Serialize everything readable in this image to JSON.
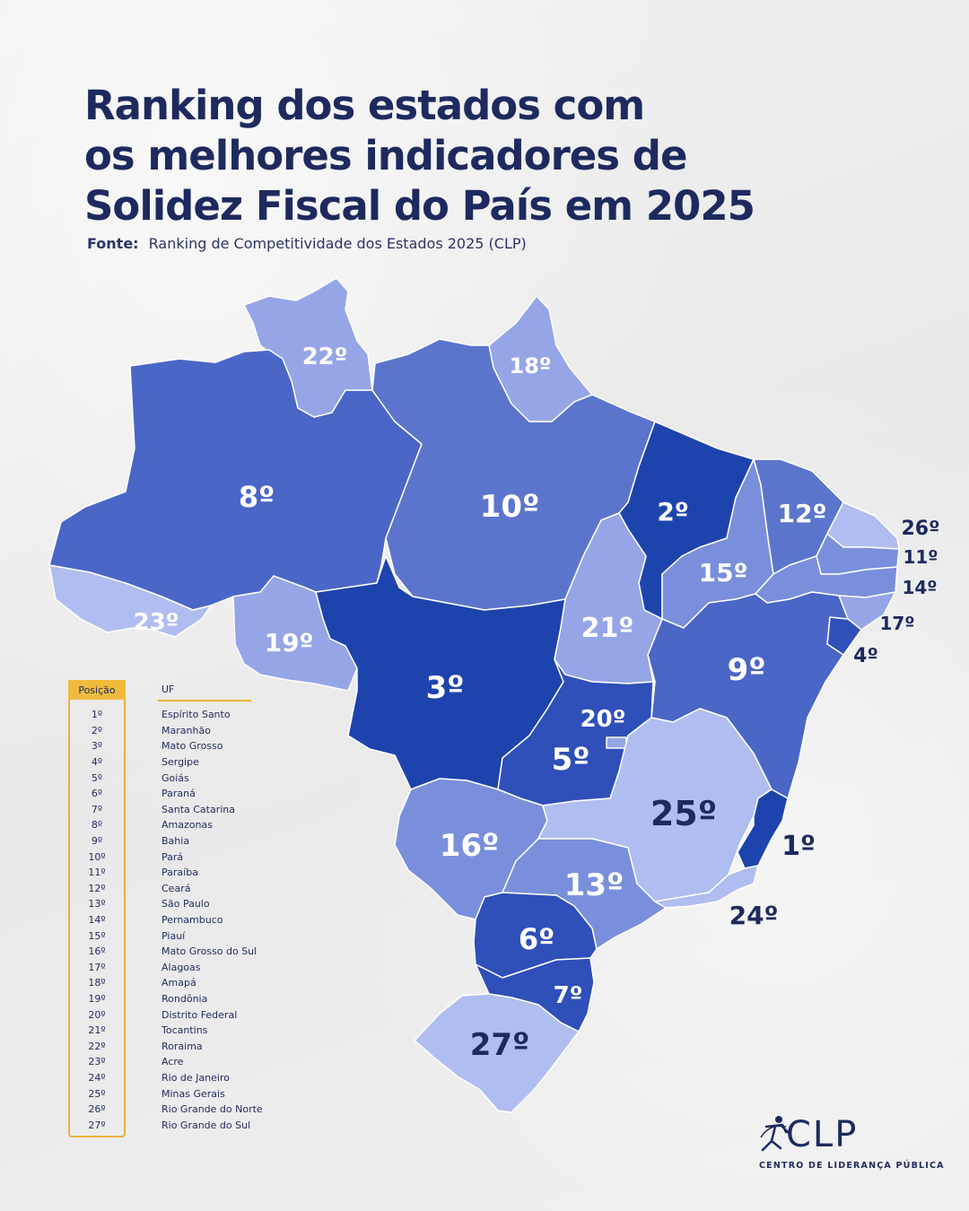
{
  "header": {
    "title_line1": "Ranking dos estados com",
    "title_line2": "os melhores indicadores de",
    "title_line3": "Solidez Fiscal do País em 2025",
    "source_label": "Fonte:",
    "source_text": "Ranking de Competitividade dos Estados 2025 (CLP)"
  },
  "map_labels": {
    "AM": "8º",
    "RR": "22º",
    "AP": "18º",
    "PA": "10º",
    "MA": "2º",
    "CE": "12º",
    "RN": "26º",
    "PB": "11º",
    "PE": "14º",
    "AL": "17º",
    "SE": "4º",
    "PI": "15º",
    "TO": "21º",
    "BA": "9º",
    "AC": "23º",
    "RO": "19º",
    "MT": "3º",
    "DF": "20º",
    "GO": "5º",
    "MS": "16º",
    "MG": "25º",
    "ES": "1º",
    "SP": "13º",
    "RJ": "24º",
    "PR": "6º",
    "SC": "7º",
    "RS": "27º"
  },
  "colors": {
    "top": "#1d44ad",
    "high": "#2f4fb9",
    "mid_high": "#4a66c6",
    "mid": "#5c75cc",
    "mid_low": "#7a8fdb",
    "low": "#95a5e6",
    "lowest": "#b0bdf0",
    "title": "#1e2a5e",
    "legend_accent": "#f0bb3d"
  },
  "legend": {
    "header_position": "Posição",
    "header_uf": "UF",
    "rows": [
      {
        "pos": "1º",
        "uf": "Espírito Santo"
      },
      {
        "pos": "2º",
        "uf": "Maranhão"
      },
      {
        "pos": "3º",
        "uf": "Mato Grosso"
      },
      {
        "pos": "4º",
        "uf": "Sergipe"
      },
      {
        "pos": "5º",
        "uf": "Goiás"
      },
      {
        "pos": "6º",
        "uf": "Paraná"
      },
      {
        "pos": "7º",
        "uf": "Santa Catarina"
      },
      {
        "pos": "8º",
        "uf": "Amazonas"
      },
      {
        "pos": "9º",
        "uf": "Bahia"
      },
      {
        "pos": "10º",
        "uf": "Pará"
      },
      {
        "pos": "11º",
        "uf": "Paraíba"
      },
      {
        "pos": "12º",
        "uf": "Ceará"
      },
      {
        "pos": "13º",
        "uf": "São Paulo"
      },
      {
        "pos": "14º",
        "uf": "Pernambuco"
      },
      {
        "pos": "15º",
        "uf": "Piauí"
      },
      {
        "pos": "16º",
        "uf": "Mato Grosso do Sul"
      },
      {
        "pos": "17º",
        "uf": "Alagoas"
      },
      {
        "pos": "18º",
        "uf": "Amapá"
      },
      {
        "pos": "19º",
        "uf": "Rondônia"
      },
      {
        "pos": "20º",
        "uf": "Distrito Federal"
      },
      {
        "pos": "21º",
        "uf": "Tocantins"
      },
      {
        "pos": "22º",
        "uf": "Roraima"
      },
      {
        "pos": "23º",
        "uf": "Acre"
      },
      {
        "pos": "24º",
        "uf": "Rio de Janeiro"
      },
      {
        "pos": "25º",
        "uf": "Minas Gerais"
      },
      {
        "pos": "26º",
        "uf": "Rio Grande do Norte"
      },
      {
        "pos": "27º",
        "uf": "Rio Grande do Sul"
      }
    ]
  },
  "logo": {
    "name": "CLP",
    "subtitle": "CENTRO DE LIDERANÇA PÚBLICA",
    "icon": "runner-figure-icon"
  }
}
